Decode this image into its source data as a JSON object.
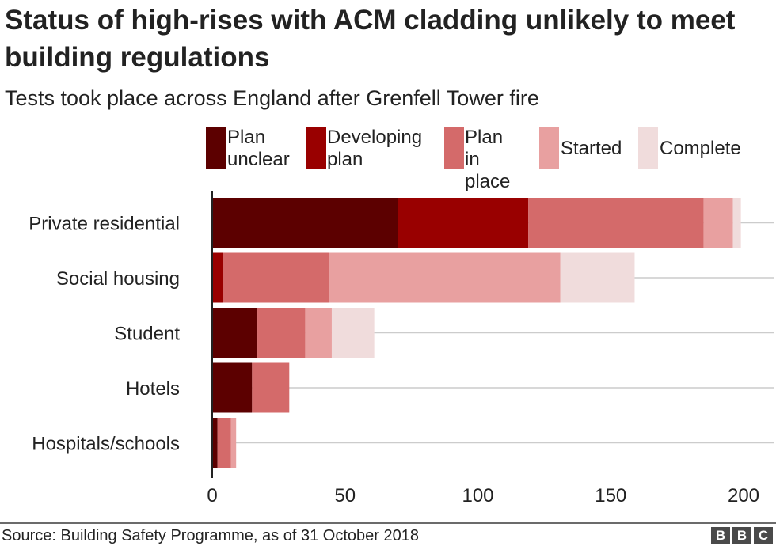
{
  "chart_data": {
    "type": "bar",
    "orientation": "horizontal",
    "stacked": true,
    "title": "Status of high-rises with ACM cladding unlikely to meet building regulations",
    "subtitle": "Tests took place across England after Grenfell Tower fire",
    "categories": [
      "Private residential",
      "Social housing",
      "Student",
      "Hotels",
      "Hospitals/schools"
    ],
    "series": [
      {
        "name": "Plan\nunclear",
        "color": "#5c0000",
        "values": [
          70,
          0,
          17,
          15,
          2
        ]
      },
      {
        "name": "Developing\nplan",
        "color": "#990000",
        "values": [
          49,
          4,
          0,
          0,
          0
        ]
      },
      {
        "name": "Plan in\nplace",
        "color": "#d46a6a",
        "values": [
          66,
          40,
          18,
          14,
          5
        ]
      },
      {
        "name": "Started",
        "color": "#e8a0a0",
        "values": [
          11,
          87,
          10,
          0,
          2
        ]
      },
      {
        "name": "Complete",
        "color": "#f0dcdc",
        "values": [
          3,
          28,
          16,
          0,
          0
        ]
      }
    ],
    "xlim": [
      0,
      210
    ],
    "xticks": [
      "0",
      "50",
      "100",
      "150",
      "200"
    ],
    "grid": true,
    "legend_position": "top"
  },
  "footer": {
    "source": "Source: Building Safety Programme, as of 31 October 2018",
    "logo_letters": [
      "B",
      "B",
      "C"
    ]
  }
}
